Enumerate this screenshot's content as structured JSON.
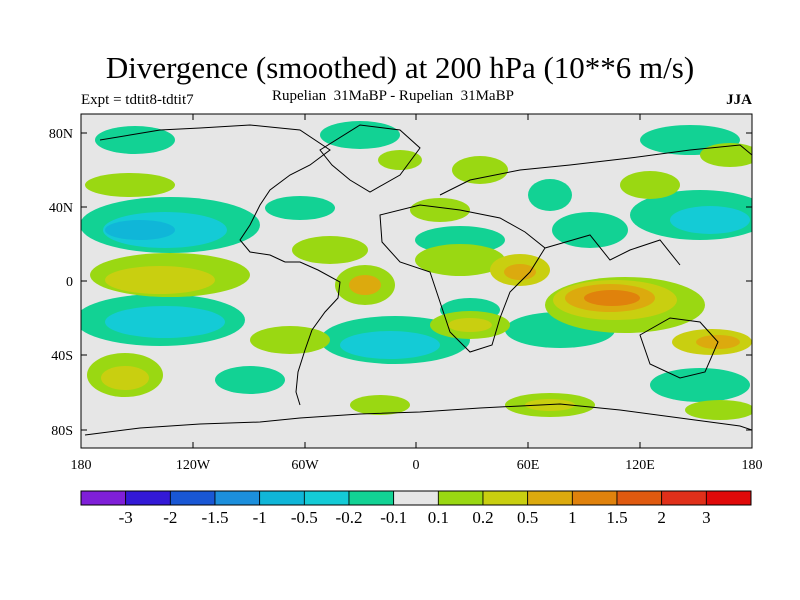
{
  "title": "Divergence (smoothed) at 200 hPa (10**6 m/s)",
  "subtitle_left": "Expt = tdtit8-tdtit7",
  "subtitle_center": "Rupelian  31MaBP - Rupelian  31MaBP",
  "subtitle_right": "JJA",
  "lat_labels": [
    "80N",
    "40N",
    "0",
    "40S",
    "80S"
  ],
  "lon_labels": [
    "180",
    "120W",
    "60W",
    "0",
    "60E",
    "120E",
    "180"
  ],
  "colorbar": {
    "labels": [
      "-3",
      "-2",
      "-1.5",
      "-1",
      "-0.5",
      "-0.2",
      "-0.1",
      "0.1",
      "0.2",
      "0.5",
      "1",
      "1.5",
      "2",
      "3"
    ],
    "colors": [
      "#7f1fd8",
      "#3319d6",
      "#1957d4",
      "#1c8fdc",
      "#10b6d8",
      "#14cbd6",
      "#12d294",
      "#e6e6e6",
      "#9ad812",
      "#c9cf10",
      "#dcaa0e",
      "#e0820c",
      "#e05a10",
      "#e0301a",
      "#e00a0a"
    ]
  },
  "colors": {
    "land_bg": "#e6e6e6",
    "neg_light": "#12d294",
    "neg_mid": "#14cbd6",
    "neg_strong": "#10b6d8",
    "pos_light": "#9ad812",
    "pos_mid": "#c9cf10",
    "pos_strong": "#dcaa0e",
    "pos_max": "#e0820c",
    "pos_peak": "#e05a10"
  }
}
